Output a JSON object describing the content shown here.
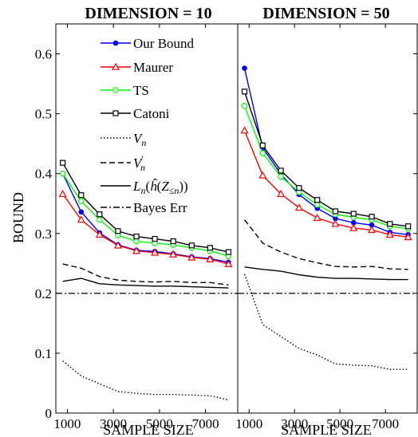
{
  "chart_data": [
    {
      "type": "line",
      "title": "DIMENSION = 10",
      "xlabel": "SAMPLE SIZE",
      "ylabel": "BOUND",
      "xlim": [
        500,
        8400
      ],
      "ylim": [
        0,
        0.65
      ],
      "xticks": [
        1000,
        3000,
        5000,
        7000
      ],
      "yticks": [
        0,
        0.1,
        0.2,
        0.3,
        0.4,
        0.5,
        0.6
      ],
      "x": [
        800,
        1600,
        2400,
        3200,
        4000,
        4800,
        5600,
        6400,
        7200,
        8000
      ],
      "legend_position": "top-right",
      "series": [
        {
          "name": "Our Bound",
          "values": [
            0.4,
            0.336,
            0.301,
            0.281,
            0.272,
            0.27,
            0.266,
            0.261,
            0.258,
            0.252
          ]
        },
        {
          "name": "Maurer",
          "values": [
            0.366,
            0.323,
            0.298,
            0.28,
            0.271,
            0.268,
            0.265,
            0.26,
            0.257,
            0.249
          ]
        },
        {
          "name": "TS",
          "values": [
            0.4,
            0.354,
            0.323,
            0.297,
            0.287,
            0.284,
            0.281,
            0.276,
            0.271,
            0.262
          ]
        },
        {
          "name": "Catoni",
          "values": [
            0.418,
            0.364,
            0.332,
            0.304,
            0.295,
            0.291,
            0.287,
            0.28,
            0.276,
            0.269
          ]
        },
        {
          "name": "V_n",
          "values": [
            0.087,
            0.062,
            0.049,
            0.036,
            0.033,
            0.031,
            0.031,
            0.03,
            0.029,
            0.022
          ]
        },
        {
          "name": "V_n'",
          "values": [
            0.249,
            0.242,
            0.228,
            0.222,
            0.22,
            0.219,
            0.22,
            0.218,
            0.218,
            0.214
          ]
        },
        {
          "name": "L_n",
          "values": [
            0.22,
            0.225,
            0.216,
            0.214,
            0.213,
            0.212,
            0.212,
            0.211,
            0.21,
            0.209
          ]
        },
        {
          "name": "Bayes Err",
          "values": [
            0.2,
            0.2,
            0.2,
            0.2,
            0.2,
            0.2,
            0.2,
            0.2,
            0.2,
            0.2
          ]
        }
      ]
    },
    {
      "type": "line",
      "title": "DIMENSION = 50",
      "xlabel": "SAMPLE SIZE",
      "ylabel": "",
      "xlim": [
        500,
        8400
      ],
      "ylim": [
        0,
        0.65
      ],
      "xticks": [
        1000,
        3000,
        5000,
        7000
      ],
      "x": [
        800,
        1600,
        2400,
        3200,
        4000,
        4800,
        5600,
        6400,
        7200,
        8000
      ],
      "series": [
        {
          "name": "Our Bound",
          "values": [
            0.576,
            0.443,
            0.399,
            0.365,
            0.342,
            0.325,
            0.318,
            0.314,
            0.302,
            0.298
          ]
        },
        {
          "name": "Maurer",
          "values": [
            0.472,
            0.397,
            0.366,
            0.343,
            0.326,
            0.316,
            0.309,
            0.306,
            0.298,
            0.294
          ]
        },
        {
          "name": "TS",
          "values": [
            0.513,
            0.434,
            0.395,
            0.369,
            0.348,
            0.332,
            0.327,
            0.323,
            0.312,
            0.308
          ]
        },
        {
          "name": "Catoni",
          "values": [
            0.537,
            0.447,
            0.405,
            0.376,
            0.356,
            0.337,
            0.333,
            0.328,
            0.316,
            0.312
          ]
        },
        {
          "name": "V_n",
          "values": [
            0.232,
            0.148,
            0.128,
            0.108,
            0.097,
            0.082,
            0.08,
            0.079,
            0.073,
            0.073
          ]
        },
        {
          "name": "V_n'",
          "values": [
            0.323,
            0.284,
            0.269,
            0.258,
            0.251,
            0.245,
            0.244,
            0.245,
            0.241,
            0.24
          ]
        },
        {
          "name": "L_n",
          "values": [
            0.244,
            0.24,
            0.237,
            0.231,
            0.227,
            0.225,
            0.225,
            0.224,
            0.223,
            0.223
          ]
        },
        {
          "name": "Bayes Err",
          "values": [
            0.2,
            0.2,
            0.2,
            0.2,
            0.2,
            0.2,
            0.2,
            0.2,
            0.2,
            0.2
          ]
        }
      ]
    }
  ],
  "styles": {
    "Our Bound": {
      "color": "#0000ff",
      "marker": "dot",
      "dash": ""
    },
    "Maurer": {
      "color": "#ff0000",
      "marker": "triangle",
      "dash": ""
    },
    "TS": {
      "color": "#00ff00",
      "marker": "circle",
      "dash": ""
    },
    "Catoni": {
      "color": "#000000",
      "marker": "square",
      "dash": ""
    },
    "V_n": {
      "color": "#000000",
      "marker": "",
      "dash": "1.5,2.5"
    },
    "V_n'": {
      "color": "#000000",
      "marker": "",
      "dash": "7,4"
    },
    "L_n": {
      "color": "#000000",
      "marker": "",
      "dash": ""
    },
    "Bayes Err": {
      "color": "#000000",
      "marker": "",
      "dash": "8,3,2,3"
    }
  },
  "legend_labels": [
    "Our Bound",
    "Maurer",
    "TS",
    "Catoni",
    "V_n",
    "V'_n",
    "L_n(ĥ(Z≤n))",
    "Bayes Err"
  ]
}
